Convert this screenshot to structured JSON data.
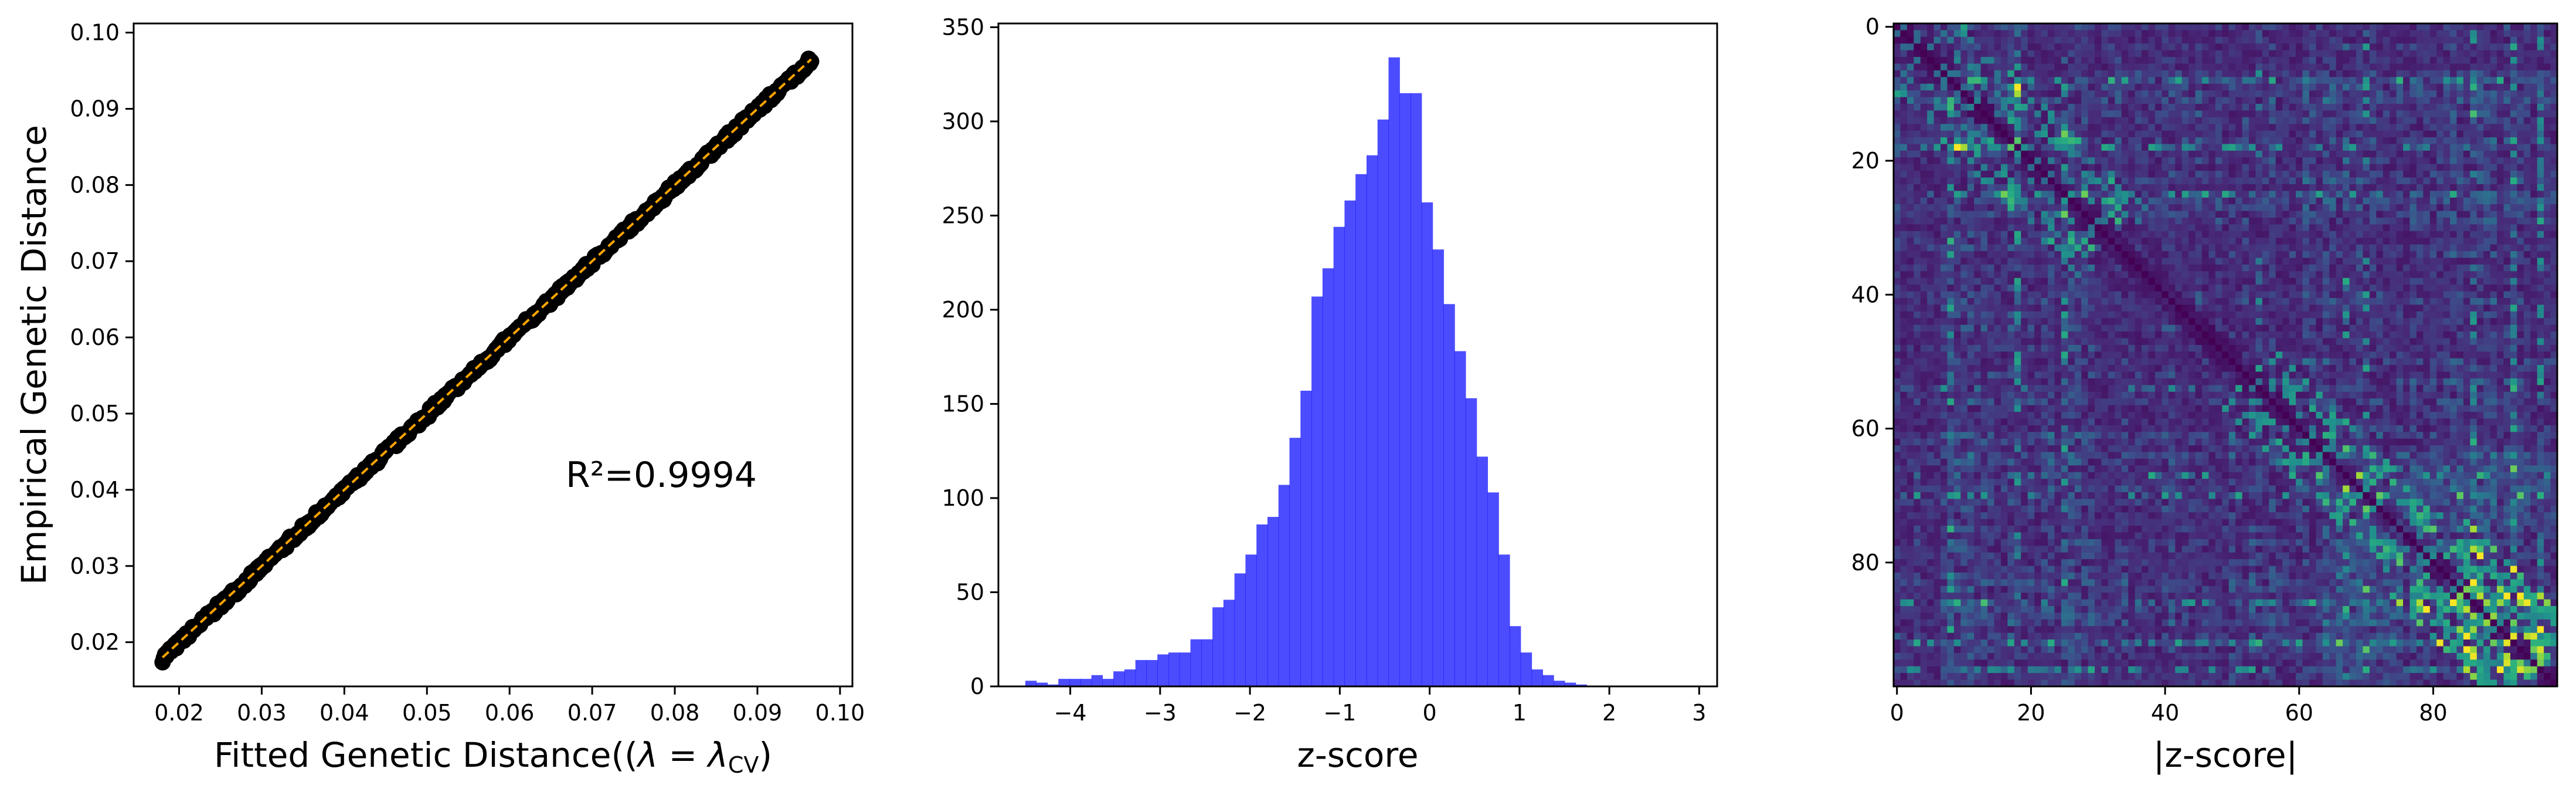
{
  "chart_data": [
    {
      "type": "scatter",
      "title": "",
      "xlabel": "Fitted Genetic Distance((",
      "xlabel_math": "λ = λ",
      "xlabel_sub": "CV",
      "xlabel_close": ")",
      "ylabel": "Empirical Genetic Distance",
      "xlim": [
        0.0145,
        0.1015
      ],
      "ylim": [
        0.0142,
        0.1012
      ],
      "xticks": [
        0.02,
        0.03,
        0.04,
        0.05,
        0.06,
        0.07,
        0.08,
        0.09,
        0.1
      ],
      "yticks": [
        0.02,
        0.03,
        0.04,
        0.05,
        0.06,
        0.07,
        0.08,
        0.09,
        0.1
      ],
      "xtick_labels": [
        "0.02",
        "0.03",
        "0.04",
        "0.05",
        "0.06",
        "0.07",
        "0.08",
        "0.09",
        "0.10"
      ],
      "ytick_labels": [
        "0.02",
        "0.03",
        "0.04",
        "0.05",
        "0.06",
        "0.07",
        "0.08",
        "0.09",
        "0.10"
      ],
      "point_range": [
        0.018,
        0.0965
      ],
      "annotation": "R²=0.9994",
      "point_color": "#000000",
      "fit_line_color": "#ffa500",
      "grid": false
    },
    {
      "type": "histogram",
      "title": "",
      "xlabel": "z-score",
      "ylabel": "",
      "xlim": [
        -4.8,
        3.2
      ],
      "ylim": [
        0,
        352
      ],
      "xticks": [
        -4,
        -3,
        -2,
        -1,
        0,
        1,
        2,
        3
      ],
      "yticks": [
        0,
        50,
        100,
        150,
        200,
        250,
        300,
        350
      ],
      "xtick_labels": [
        "−4",
        "−3",
        "−2",
        "−1",
        "0",
        "1",
        "2",
        "3"
      ],
      "ytick_labels": [
        "0",
        "50",
        "100",
        "150",
        "200",
        "250",
        "300",
        "350"
      ],
      "bin_start": -4.5,
      "bin_width": 0.1225,
      "counts": [
        3,
        2,
        1,
        4,
        4,
        4,
        6,
        4,
        8,
        9,
        14,
        14,
        17,
        18,
        18,
        25,
        25,
        42,
        46,
        60,
        70,
        86,
        90,
        107,
        132,
        157,
        207,
        222,
        244,
        258,
        272,
        282,
        301,
        334,
        315,
        315,
        257,
        232,
        203,
        178,
        153,
        122,
        103,
        70,
        32,
        18,
        9,
        6,
        3,
        2,
        1
      ],
      "bar_color": "#0000ff",
      "bar_alpha": 0.7,
      "grid": false
    },
    {
      "type": "heatmap",
      "title": "",
      "xlabel": "|z-score|",
      "ylabel": "",
      "size": 99,
      "xticks": [
        0,
        20,
        40,
        60,
        80
      ],
      "yticks": [
        0,
        20,
        40,
        60,
        80
      ],
      "xtick_labels": [
        "0",
        "20",
        "40",
        "60",
        "80"
      ],
      "ytick_labels": [
        "0",
        "20",
        "40",
        "60",
        "80"
      ],
      "colormap": "viridis",
      "bright_rows": [
        8,
        18,
        25,
        67,
        70,
        86,
        92,
        96
      ],
      "bright_cols": [
        8,
        18,
        25,
        54,
        67,
        70,
        86,
        92,
        96
      ],
      "grid": false
    }
  ]
}
